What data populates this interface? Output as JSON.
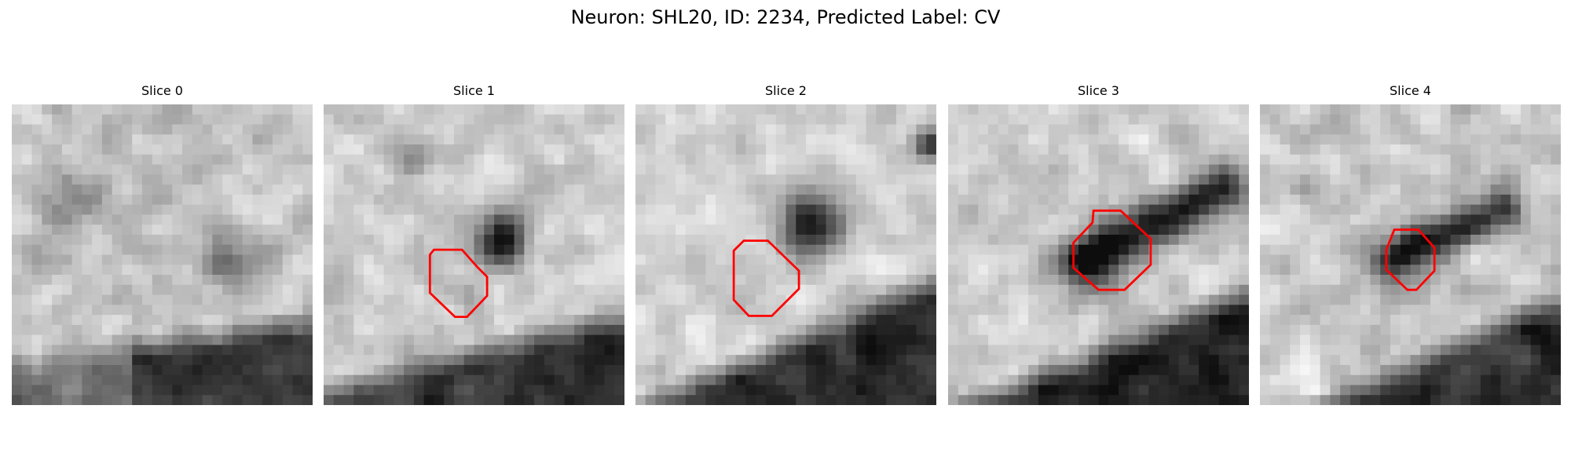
{
  "figure": {
    "title": "Neuron: SHL20, ID: 2234, Predicted Label: CV"
  },
  "slices": [
    {
      "label": "Slice 0"
    },
    {
      "label": "Slice 1"
    },
    {
      "label": "Slice 2"
    },
    {
      "label": "Slice 3"
    },
    {
      "label": "Slice 4"
    }
  ],
  "roi_outline_color": "#ff0000",
  "colormap": "grayscale"
}
